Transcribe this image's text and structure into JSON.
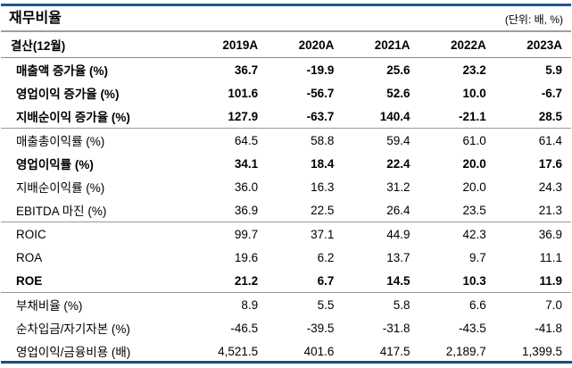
{
  "title": "재무비율",
  "unit_label": "(단위: 배, %)",
  "colors": {
    "rule_blue_top": "#1d5a96",
    "rule_blue_bottom": "#17507f",
    "rule_gray": "#9e9e9e",
    "row_divider": "#999999",
    "text": "#000000"
  },
  "table": {
    "header": [
      "결산(12월)",
      "2019A",
      "2020A",
      "2021A",
      "2022A",
      "2023A"
    ],
    "groups": [
      {
        "rows": [
          {
            "label": "매출액 증가율 (%)",
            "values": [
              "36.7",
              "-19.9",
              "25.6",
              "23.2",
              "5.9"
            ],
            "bold": true
          },
          {
            "label": "영업이익 증가율 (%)",
            "values": [
              "101.6",
              "-56.7",
              "52.6",
              "10.0",
              "-6.7"
            ],
            "bold": true
          },
          {
            "label": "지배순이익 증가율 (%)",
            "values": [
              "127.9",
              "-63.7",
              "140.4",
              "-21.1",
              "28.5"
            ],
            "bold": true
          }
        ]
      },
      {
        "rows": [
          {
            "label": "매출총이익률 (%)",
            "values": [
              "64.5",
              "58.8",
              "59.4",
              "61.0",
              "61.4"
            ],
            "bold": false
          },
          {
            "label": "영업이익률 (%)",
            "values": [
              "34.1",
              "18.4",
              "22.4",
              "20.0",
              "17.6"
            ],
            "bold": true
          },
          {
            "label": "지배순이익률 (%)",
            "values": [
              "36.0",
              "16.3",
              "31.2",
              "20.0",
              "24.3"
            ],
            "bold": false
          },
          {
            "label": "EBITDA 마진 (%)",
            "values": [
              "36.9",
              "22.5",
              "26.4",
              "23.5",
              "21.3"
            ],
            "bold": false
          }
        ]
      },
      {
        "rows": [
          {
            "label": "ROIC",
            "values": [
              "99.7",
              "37.1",
              "44.9",
              "42.3",
              "36.9"
            ],
            "bold": false
          },
          {
            "label": "ROA",
            "values": [
              "19.6",
              "6.2",
              "13.7",
              "9.7",
              "11.1"
            ],
            "bold": false
          },
          {
            "label": "ROE",
            "values": [
              "21.2",
              "6.7",
              "14.5",
              "10.3",
              "11.9"
            ],
            "bold": true
          }
        ]
      },
      {
        "rows": [
          {
            "label": "부채비율 (%)",
            "values": [
              "8.9",
              "5.5",
              "5.8",
              "6.6",
              "7.0"
            ],
            "bold": false
          },
          {
            "label": "순차입금/자기자본 (%)",
            "values": [
              "-46.5",
              "-39.5",
              "-31.8",
              "-43.5",
              "-41.8"
            ],
            "bold": false
          },
          {
            "label": "영업이익/금융비용 (배)",
            "values": [
              "4,521.5",
              "401.6",
              "417.5",
              "2,189.7",
              "1,399.5"
            ],
            "bold": false
          }
        ]
      }
    ]
  }
}
